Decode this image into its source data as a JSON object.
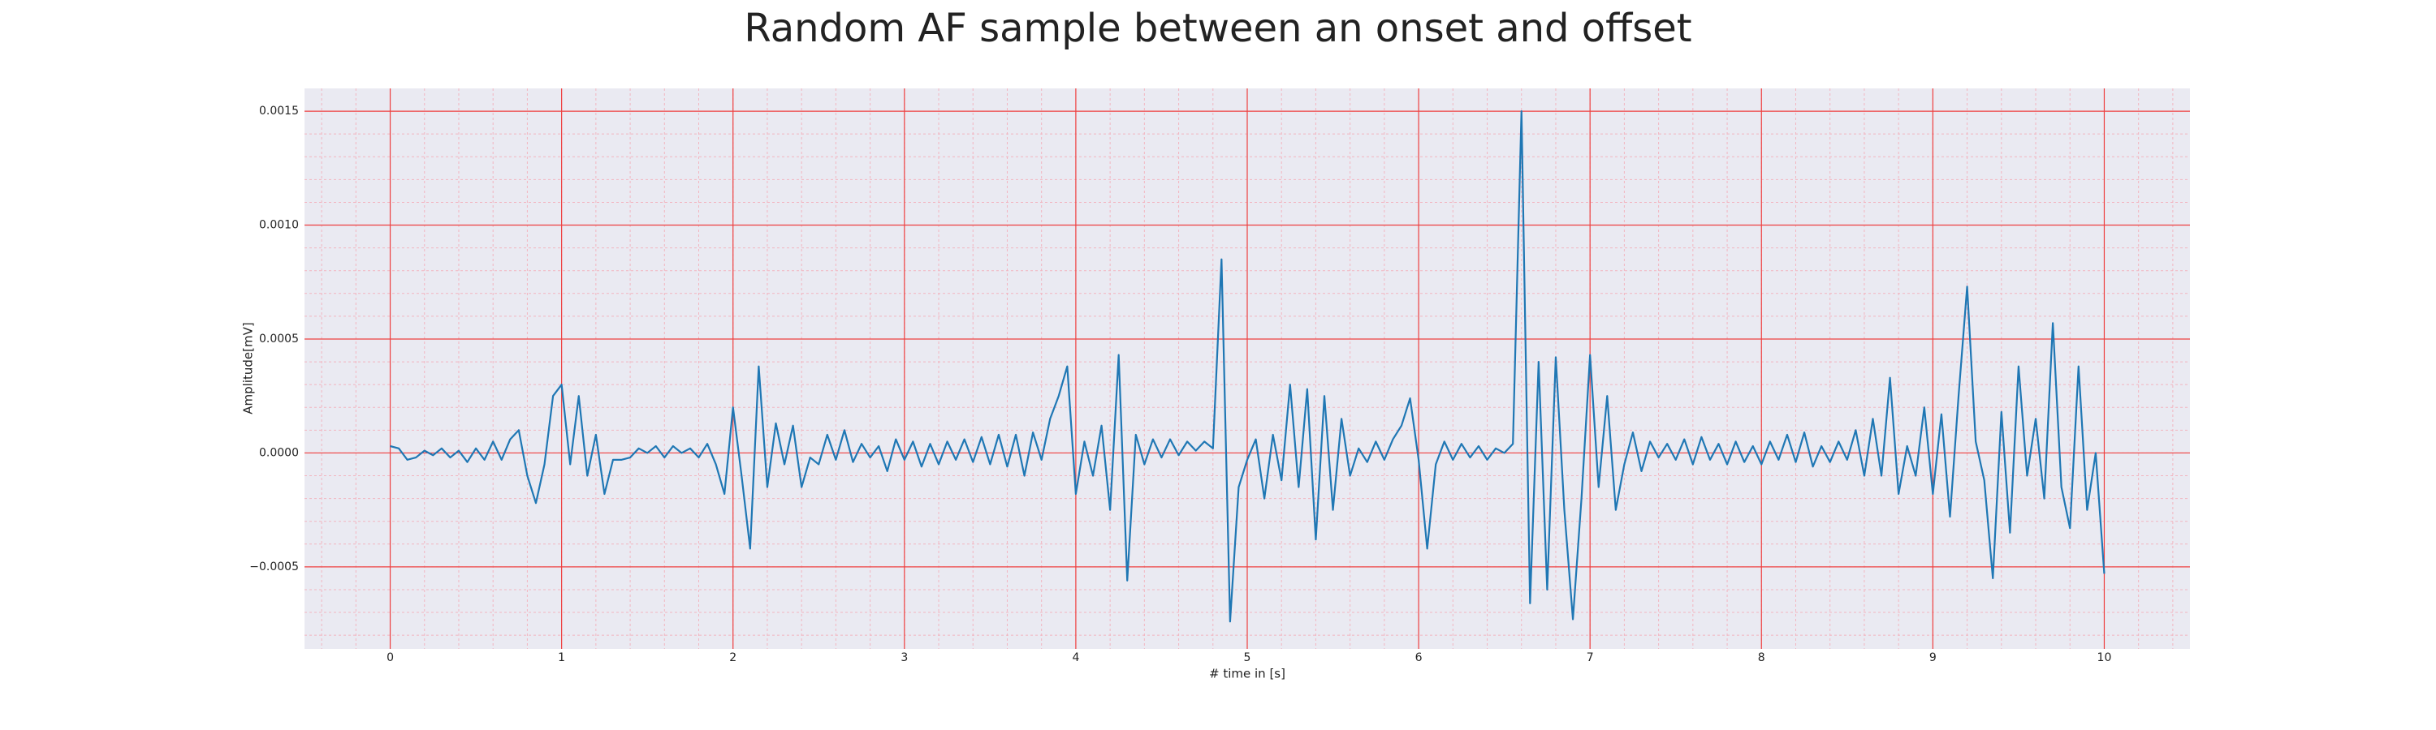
{
  "chart_data": {
    "type": "line",
    "title": "Random AF sample between an onset and offset",
    "xlabel": "# time in [s]",
    "ylabel": "Amplitude[mV]",
    "color": "#1f77b4",
    "grid": true,
    "minor_grid": true,
    "xlim": [
      -0.5,
      10.5
    ],
    "ylim": [
      -0.00086,
      0.0016
    ],
    "xticks": [
      0,
      1,
      2,
      3,
      4,
      5,
      6,
      7,
      8,
      9,
      10
    ],
    "yticks": [
      {
        "value": -0.0005,
        "label": "−0.0005"
      },
      {
        "value": 0,
        "label": "0.0000"
      },
      0.0005,
      {
        "value": 0.001,
        "label": "0.0010"
      },
      0.0015
    ],
    "x": [
      0,
      0.05,
      0.1,
      0.15,
      0.2,
      0.25,
      0.3,
      0.35,
      0.4,
      0.45,
      0.5,
      0.55,
      0.6,
      0.65,
      0.7,
      0.75,
      0.8,
      0.85,
      0.9,
      0.95,
      1,
      1.05,
      1.1,
      1.15,
      1.2,
      1.25,
      1.3,
      1.35,
      1.4,
      1.45,
      1.5,
      1.55,
      1.6,
      1.65,
      1.7,
      1.75,
      1.8,
      1.85,
      1.9,
      1.95,
      2,
      2.05,
      2.1,
      2.15,
      2.2,
      2.25,
      2.3,
      2.35,
      2.4,
      2.45,
      2.5,
      2.55,
      2.6,
      2.65,
      2.7,
      2.75,
      2.8,
      2.85,
      2.9,
      2.95,
      3,
      3.05,
      3.1,
      3.15,
      3.2,
      3.25,
      3.3,
      3.35,
      3.4,
      3.45,
      3.5,
      3.55,
      3.6,
      3.65,
      3.7,
      3.75,
      3.8,
      3.85,
      3.9,
      3.95,
      4,
      4.05,
      4.1,
      4.15,
      4.2,
      4.25,
      4.3,
      4.35,
      4.4,
      4.45,
      4.5,
      4.55,
      4.6,
      4.65,
      4.7,
      4.75,
      4.8,
      4.85,
      4.9,
      4.95,
      5,
      5.05,
      5.1,
      5.15,
      5.2,
      5.25,
      5.3,
      5.35,
      5.4,
      5.45,
      5.5,
      5.55,
      5.6,
      5.65,
      5.7,
      5.75,
      5.8,
      5.85,
      5.9,
      5.95,
      6,
      6.05,
      6.1,
      6.15,
      6.2,
      6.25,
      6.3,
      6.35,
      6.4,
      6.45,
      6.5,
      6.55,
      6.6,
      6.65,
      6.7,
      6.75,
      6.8,
      6.85,
      6.9,
      6.95,
      7,
      7.05,
      7.1,
      7.15,
      7.2,
      7.25,
      7.3,
      7.35,
      7.4,
      7.45,
      7.5,
      7.55,
      7.6,
      7.65,
      7.7,
      7.75,
      7.8,
      7.85,
      7.9,
      7.95,
      8,
      8.05,
      8.1,
      8.15,
      8.2,
      8.25,
      8.3,
      8.35,
      8.4,
      8.45,
      8.5,
      8.55,
      8.6,
      8.65,
      8.7,
      8.75,
      8.8,
      8.85,
      8.9,
      8.95,
      9,
      9.05,
      9.1,
      9.15,
      9.2,
      9.25,
      9.3,
      9.35,
      9.4,
      9.45,
      9.5,
      9.55,
      9.6,
      9.65,
      9.7,
      9.75,
      9.8,
      9.85,
      9.9,
      9.95,
      10
    ],
    "values": [
      3e-05,
      2e-05,
      -3e-05,
      -2e-05,
      1e-05,
      -1e-05,
      2e-05,
      -2e-05,
      1e-05,
      -4e-05,
      2e-05,
      -3e-05,
      5e-05,
      -3e-05,
      6e-05,
      0.0001,
      -0.0001,
      -0.00022,
      -5e-05,
      0.00025,
      0.0003,
      -5e-05,
      0.00025,
      -0.0001,
      8e-05,
      -0.00018,
      -3e-05,
      -3e-05,
      -2e-05,
      2e-05,
      0.0,
      3e-05,
      -2e-05,
      3e-05,
      0.0,
      2e-05,
      -2e-05,
      4e-05,
      -5e-05,
      -0.00018,
      0.0002,
      -0.0001,
      -0.00042,
      0.00038,
      -0.00015,
      0.00013,
      -5e-05,
      0.00012,
      -0.00015,
      -2e-05,
      -5e-05,
      8e-05,
      -3e-05,
      0.0001,
      -4e-05,
      4e-05,
      -2e-05,
      3e-05,
      -8e-05,
      6e-05,
      -3e-05,
      5e-05,
      -6e-05,
      4e-05,
      -5e-05,
      5e-05,
      -3e-05,
      6e-05,
      -4e-05,
      7e-05,
      -5e-05,
      8e-05,
      -6e-05,
      8e-05,
      -0.0001,
      9e-05,
      -3e-05,
      0.00015,
      0.00025,
      0.00038,
      -0.00018,
      5e-05,
      -0.0001,
      0.00012,
      -0.00025,
      0.00043,
      -0.00056,
      8e-05,
      -5e-05,
      6e-05,
      -2e-05,
      6e-05,
      -1e-05,
      5e-05,
      1e-05,
      5e-05,
      2e-05,
      0.00085,
      -0.00074,
      -0.00015,
      -3e-05,
      6e-05,
      -0.0002,
      8e-05,
      -0.00012,
      0.0003,
      -0.00015,
      0.00028,
      -0.00038,
      0.00025,
      -0.00025,
      0.00015,
      -0.0001,
      2e-05,
      -4e-05,
      5e-05,
      -3e-05,
      6e-05,
      0.00012,
      0.00024,
      -3e-05,
      -0.00042,
      -5e-05,
      5e-05,
      -3e-05,
      4e-05,
      -2e-05,
      3e-05,
      -3e-05,
      2e-05,
      0.0,
      4e-05,
      0.0015,
      -0.00066,
      0.0004,
      -0.0006,
      0.00042,
      -0.00025,
      -0.00073,
      -0.0002,
      0.00043,
      -0.00015,
      0.00025,
      -0.00025,
      -5e-05,
      9e-05,
      -8e-05,
      5e-05,
      -2e-05,
      4e-05,
      -3e-05,
      6e-05,
      -5e-05,
      7e-05,
      -3e-05,
      4e-05,
      -5e-05,
      5e-05,
      -4e-05,
      3e-05,
      -5e-05,
      5e-05,
      -3e-05,
      8e-05,
      -4e-05,
      9e-05,
      -6e-05,
      3e-05,
      -4e-05,
      5e-05,
      -3e-05,
      0.0001,
      -0.0001,
      0.00015,
      -0.0001,
      0.00033,
      -0.00018,
      3e-05,
      -0.0001,
      0.0002,
      -0.00018,
      0.00017,
      -0.00028,
      0.00025,
      0.00073,
      5e-05,
      -0.00012,
      -0.00055,
      0.00018,
      -0.00035,
      0.00038,
      -0.0001,
      0.00015,
      -0.0002,
      0.00057,
      -0.00015,
      -0.00033,
      0.00038,
      -0.00025,
      0.0,
      -0.00053
    ]
  }
}
